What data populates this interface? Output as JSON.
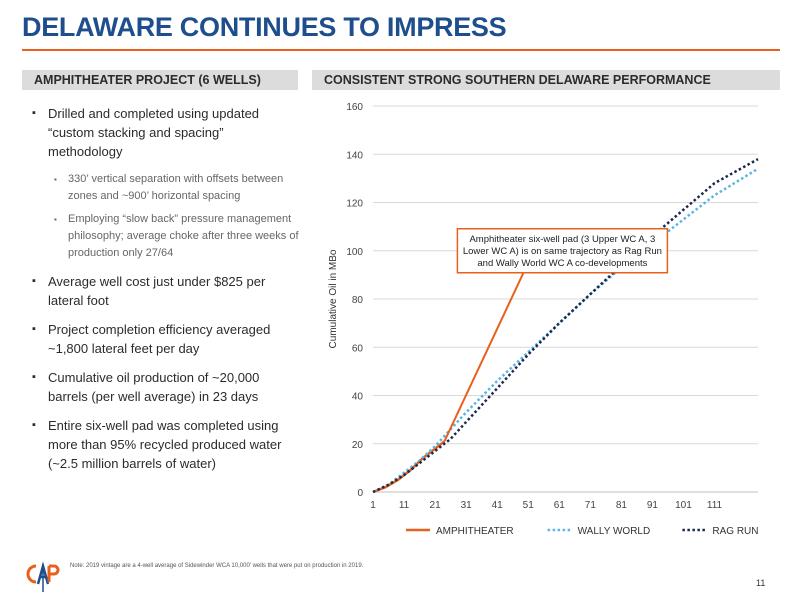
{
  "title": "DELAWARE CONTINUES TO IMPRESS",
  "left_section": {
    "heading": "AMPHITHEATER PROJECT (6 WELLS)",
    "bullets": [
      "Drilled and completed using updated “custom stacking and spacing” methodology",
      "Average well cost just under $825 per lateral foot",
      "Project completion efficiency averaged ~1,800 lateral feet per day",
      "Cumulative oil production of ~20,000 barrels (per well average) in 23 days",
      "Entire six-well pad was completed using more than 95% recycled produced water (~2.5 million barrels of water)"
    ],
    "sub_bullets": [
      "330’ vertical separation with offsets between zones and ~900’ horizontal spacing",
      "Employing “slow back” pressure management philosophy; average choke after three weeks of production only 27/64"
    ]
  },
  "right_section": {
    "heading": "CONSISTENT STRONG SOUTHERN DELAWARE PERFORMANCE"
  },
  "chart_data": {
    "type": "line",
    "title": "",
    "xlabel": "",
    "ylabel": "Cumulative Oil in MBo",
    "xlim": [
      1,
      125
    ],
    "ylim": [
      0,
      160
    ],
    "x_ticks": [
      1,
      11,
      21,
      31,
      41,
      51,
      61,
      71,
      81,
      91,
      101,
      111
    ],
    "y_ticks": [
      0,
      20,
      40,
      60,
      80,
      100,
      120,
      140,
      160
    ],
    "grid": true,
    "legend": "bottom",
    "annotation": {
      "text_lines": [
        "Amphitheater six-well pad (3 Upper WC A, 3",
        "Lower WC A) is on same trajectory as Rag Run",
        "and Wally World WC A co-developments"
      ],
      "points_to": {
        "x": 24,
        "y": 21
      },
      "box_anchor": {
        "x": 62,
        "y": 100
      }
    },
    "series": [
      {
        "name": "AMPHITHEATER",
        "style": "solid",
        "color": "#e8601c",
        "points": [
          [
            1,
            0
          ],
          [
            5,
            2
          ],
          [
            9,
            5
          ],
          [
            13,
            9
          ],
          [
            17,
            14
          ],
          [
            21,
            18
          ],
          [
            24,
            21
          ]
        ]
      },
      {
        "name": "WALLY WORLD",
        "style": "dotted",
        "color": "#5bb4e5",
        "points": [
          [
            1,
            0
          ],
          [
            6,
            3
          ],
          [
            11,
            8
          ],
          [
            16,
            13
          ],
          [
            21,
            19
          ],
          [
            26,
            26
          ],
          [
            31,
            33
          ],
          [
            41,
            46
          ],
          [
            51,
            58
          ],
          [
            61,
            70
          ],
          [
            71,
            82
          ],
          [
            81,
            93
          ],
          [
            91,
            103
          ],
          [
            101,
            113
          ],
          [
            111,
            123
          ],
          [
            125,
            134
          ]
        ]
      },
      {
        "name": "RAG RUN",
        "style": "dotted",
        "color": "#1a2a4a",
        "points": [
          [
            1,
            0
          ],
          [
            6,
            3
          ],
          [
            11,
            7
          ],
          [
            16,
            12
          ],
          [
            21,
            17
          ],
          [
            26,
            22
          ],
          [
            31,
            29
          ],
          [
            41,
            43
          ],
          [
            51,
            57
          ],
          [
            61,
            70
          ],
          [
            71,
            82
          ],
          [
            81,
            94
          ],
          [
            91,
            106
          ],
          [
            101,
            117
          ],
          [
            111,
            128
          ],
          [
            125,
            138
          ]
        ]
      }
    ]
  },
  "footnote": "Note: 2019 vintage are a 4-well average of Sidewinder WCA 10,000' wells that were put on production in 2019.",
  "page_number": "11",
  "logo": {
    "letters": "CAP"
  },
  "colors": {
    "title": "#1f4e8c",
    "accent": "#e8601c",
    "header_bg": "#dcdcdc"
  }
}
